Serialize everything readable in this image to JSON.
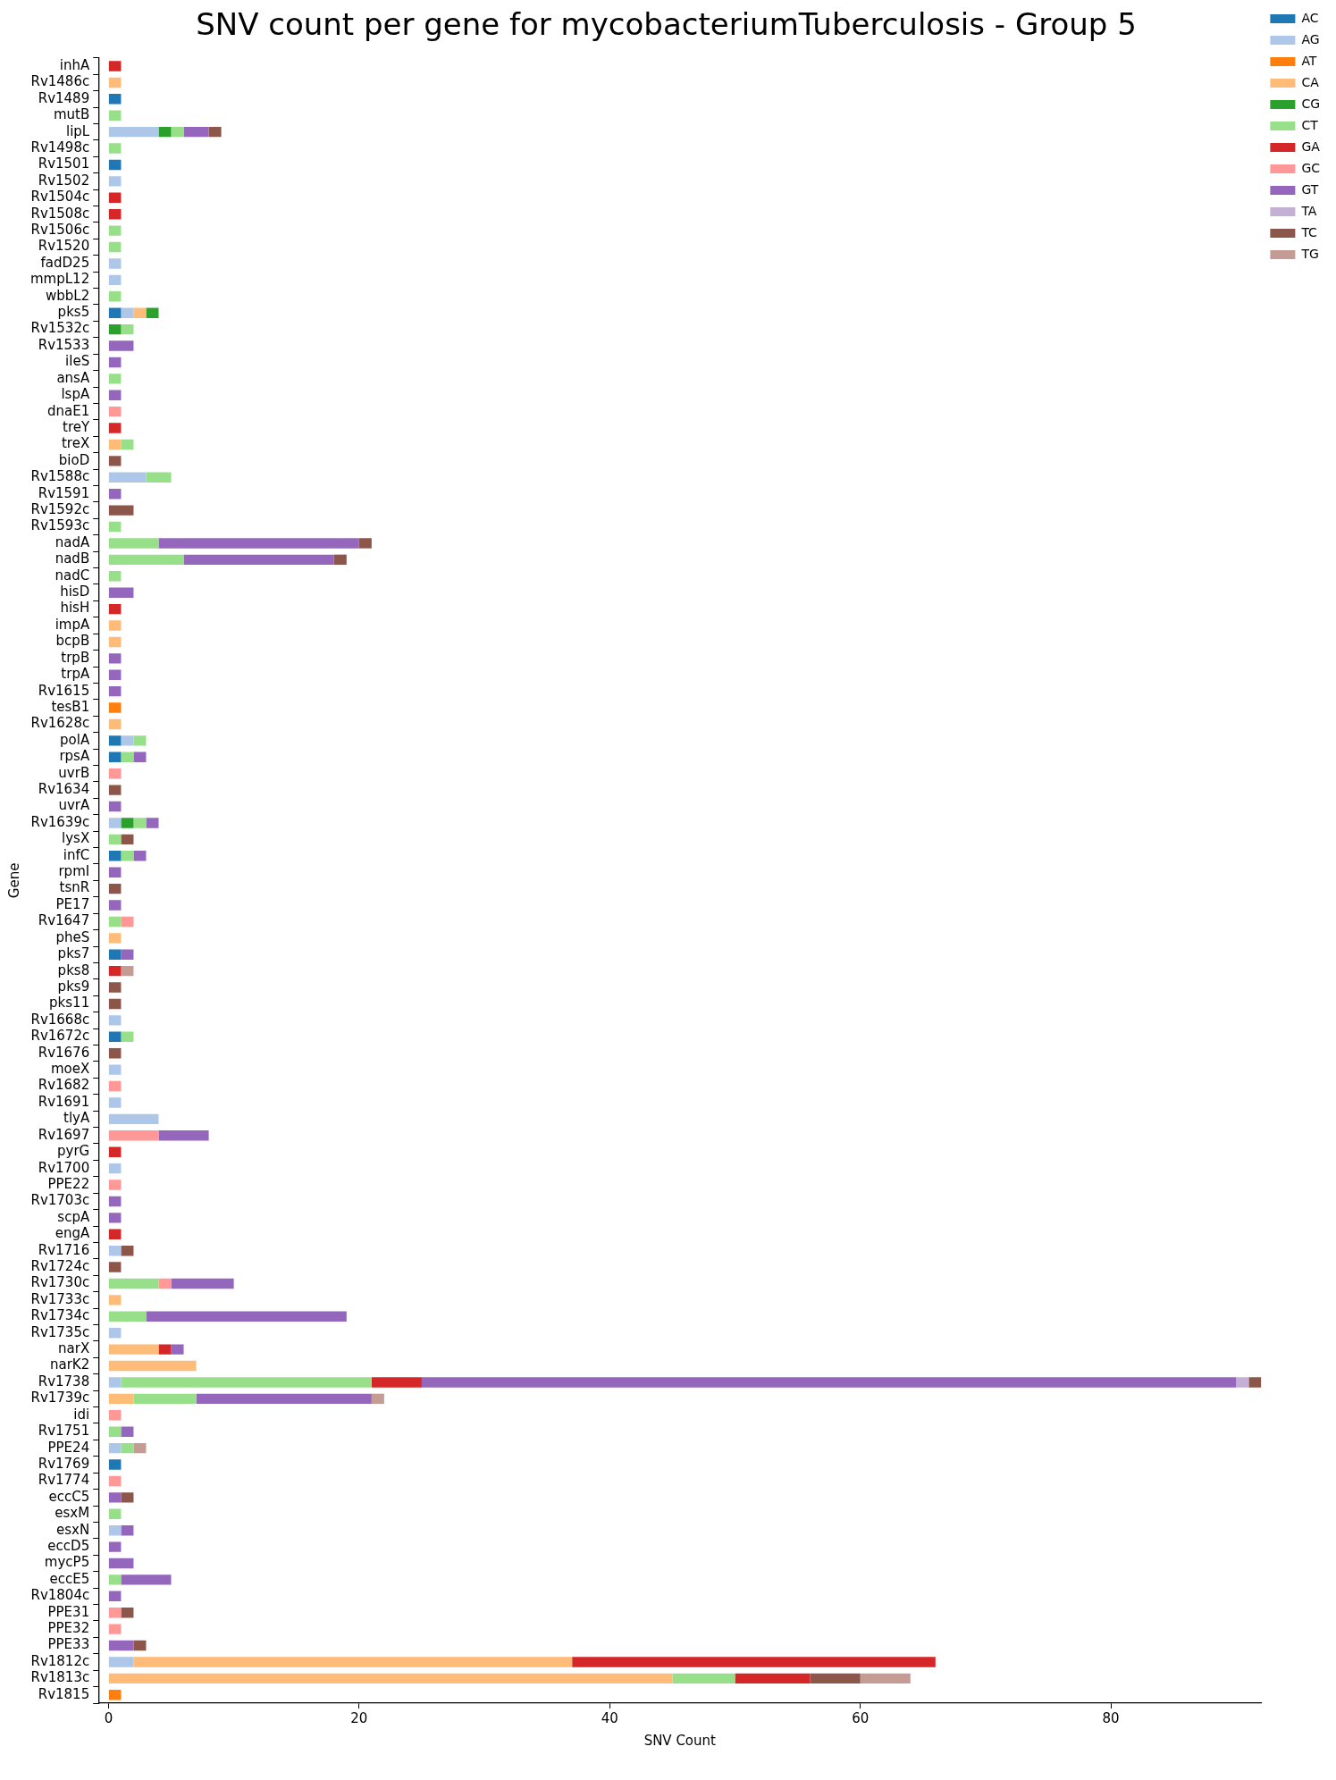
{
  "chart_data": {
    "type": "bar",
    "orientation": "horizontal",
    "stacked": true,
    "title": "SNV count per gene for mycobacteriumTuberculosis - Group 5",
    "xlabel": "SNV Count",
    "ylabel": "Gene",
    "categories": [
      "inhA",
      "Rv1486c",
      "Rv1489",
      "mutB",
      "lipL",
      "Rv1498c",
      "Rv1501",
      "Rv1502",
      "Rv1504c",
      "Rv1508c",
      "Rv1506c",
      "Rv1520",
      "fadD25",
      "mmpL12",
      "wbbL2",
      "pks5",
      "Rv1532c",
      "Rv1533",
      "ileS",
      "ansA",
      "lspA",
      "dnaE1",
      "treY",
      "treX",
      "bioD",
      "Rv1588c",
      "Rv1591",
      "Rv1592c",
      "Rv1593c",
      "nadA",
      "nadB",
      "nadC",
      "hisD",
      "hisH",
      "impA",
      "bcpB",
      "trpB",
      "trpA",
      "Rv1615",
      "tesB1",
      "Rv1628c",
      "polA",
      "rpsA",
      "uvrB",
      "Rv1634",
      "uvrA",
      "Rv1639c",
      "lysX",
      "infC",
      "rpmI",
      "tsnR",
      "PE17",
      "Rv1647",
      "pheS",
      "pks7",
      "pks8",
      "pks9",
      "pks11",
      "Rv1668c",
      "Rv1672c",
      "Rv1676",
      "moeX",
      "Rv1682",
      "Rv1691",
      "tlyA",
      "Rv1697",
      "pyrG",
      "Rv1700",
      "PPE22",
      "Rv1703c",
      "scpA",
      "engA",
      "Rv1716",
      "Rv1724c",
      "Rv1730c",
      "Rv1733c",
      "Rv1734c",
      "Rv1735c",
      "narX",
      "narK2",
      "Rv1738",
      "Rv1739c",
      "idi",
      "Rv1751",
      "PPE24",
      "Rv1769",
      "Rv1774",
      "eccC5",
      "esxM",
      "esxN",
      "eccD5",
      "mycP5",
      "eccE5",
      "Rv1804c",
      "PPE31",
      "PPE32",
      "PPE33",
      "Rv1812c",
      "Rv1813c",
      "Rv1815"
    ],
    "series": [
      {
        "name": "AC",
        "color": "#1f77b4",
        "values": [
          0,
          0,
          1,
          0,
          0,
          0,
          1,
          0,
          0,
          0,
          0,
          0,
          0,
          0,
          0,
          1,
          0,
          0,
          0,
          0,
          0,
          0,
          0,
          0,
          0,
          0,
          0,
          0,
          0,
          0,
          0,
          0,
          0,
          0,
          0,
          0,
          0,
          0,
          0,
          0,
          0,
          1,
          1,
          0,
          0,
          0,
          0,
          0,
          1,
          0,
          0,
          0,
          0,
          0,
          1,
          0,
          0,
          0,
          0,
          1,
          0,
          0,
          0,
          0,
          0,
          0,
          0,
          0,
          0,
          0,
          0,
          0,
          0,
          0,
          0,
          0,
          0,
          0,
          0,
          0,
          0,
          0,
          0,
          0,
          0,
          1,
          0,
          0,
          0,
          0,
          0,
          0,
          0,
          0,
          0,
          0,
          0,
          0,
          0,
          0
        ]
      },
      {
        "name": "AG",
        "color": "#aec7e8",
        "values": [
          0,
          0,
          0,
          0,
          4,
          0,
          0,
          1,
          0,
          0,
          0,
          0,
          1,
          1,
          0,
          1,
          0,
          0,
          0,
          0,
          0,
          0,
          0,
          0,
          0,
          3,
          0,
          0,
          0,
          0,
          0,
          0,
          0,
          0,
          0,
          0,
          0,
          0,
          0,
          0,
          0,
          1,
          0,
          0,
          0,
          0,
          1,
          0,
          0,
          0,
          0,
          0,
          0,
          0,
          0,
          0,
          0,
          0,
          1,
          0,
          0,
          1,
          0,
          1,
          4,
          0,
          0,
          1,
          0,
          0,
          0,
          0,
          1,
          0,
          0,
          0,
          0,
          1,
          0,
          0,
          1,
          0,
          0,
          0,
          1,
          0,
          0,
          0,
          0,
          1,
          0,
          0,
          0,
          0,
          0,
          0,
          0,
          2,
          0,
          0
        ]
      },
      {
        "name": "AT",
        "color": "#ff7f0e",
        "values": [
          0,
          0,
          0,
          0,
          0,
          0,
          0,
          0,
          0,
          0,
          0,
          0,
          0,
          0,
          0,
          0,
          0,
          0,
          0,
          0,
          0,
          0,
          0,
          0,
          0,
          0,
          0,
          0,
          0,
          0,
          0,
          0,
          0,
          0,
          0,
          0,
          0,
          0,
          0,
          1,
          0,
          0,
          0,
          0,
          0,
          0,
          0,
          0,
          0,
          0,
          0,
          0,
          0,
          0,
          0,
          0,
          0,
          0,
          0,
          0,
          0,
          0,
          0,
          0,
          0,
          0,
          0,
          0,
          0,
          0,
          0,
          0,
          0,
          0,
          0,
          0,
          0,
          0,
          0,
          0,
          0,
          0,
          0,
          0,
          0,
          0,
          0,
          0,
          0,
          0,
          0,
          0,
          0,
          0,
          0,
          0,
          0,
          0,
          0,
          1
        ]
      },
      {
        "name": "CA",
        "color": "#ffbb78",
        "values": [
          0,
          1,
          0,
          0,
          0,
          0,
          0,
          0,
          0,
          0,
          0,
          0,
          0,
          0,
          0,
          1,
          0,
          0,
          0,
          0,
          0,
          0,
          0,
          1,
          0,
          0,
          0,
          0,
          0,
          0,
          0,
          0,
          0,
          0,
          1,
          1,
          0,
          0,
          0,
          0,
          1,
          0,
          0,
          0,
          0,
          0,
          0,
          0,
          0,
          0,
          0,
          0,
          0,
          1,
          0,
          0,
          0,
          0,
          0,
          0,
          0,
          0,
          0,
          0,
          0,
          0,
          0,
          0,
          0,
          0,
          0,
          0,
          0,
          0,
          0,
          1,
          0,
          0,
          4,
          7,
          0,
          2,
          0,
          0,
          0,
          0,
          0,
          0,
          0,
          0,
          0,
          0,
          0,
          0,
          0,
          0,
          0,
          35,
          45,
          0
        ]
      },
      {
        "name": "CG",
        "color": "#2ca02c",
        "values": [
          0,
          0,
          0,
          0,
          1,
          0,
          0,
          0,
          0,
          0,
          0,
          0,
          0,
          0,
          0,
          1,
          1,
          0,
          0,
          0,
          0,
          0,
          0,
          0,
          0,
          0,
          0,
          0,
          0,
          0,
          0,
          0,
          0,
          0,
          0,
          0,
          0,
          0,
          0,
          0,
          0,
          0,
          0,
          0,
          0,
          0,
          1,
          0,
          0,
          0,
          0,
          0,
          0,
          0,
          0,
          0,
          0,
          0,
          0,
          0,
          0,
          0,
          0,
          0,
          0,
          0,
          0,
          0,
          0,
          0,
          0,
          0,
          0,
          0,
          0,
          0,
          0,
          0,
          0,
          0,
          0,
          0,
          0,
          0,
          0,
          0,
          0,
          0,
          0,
          0,
          0,
          0,
          0,
          0,
          0,
          0,
          0,
          0,
          0,
          0
        ]
      },
      {
        "name": "CT",
        "color": "#98df8a",
        "values": [
          0,
          0,
          0,
          1,
          1,
          1,
          0,
          0,
          0,
          0,
          1,
          1,
          0,
          0,
          1,
          0,
          1,
          0,
          0,
          1,
          0,
          0,
          0,
          1,
          0,
          2,
          0,
          0,
          1,
          4,
          6,
          1,
          0,
          0,
          0,
          0,
          0,
          0,
          0,
          0,
          0,
          1,
          1,
          0,
          0,
          0,
          1,
          1,
          1,
          0,
          0,
          0,
          1,
          0,
          0,
          0,
          0,
          0,
          0,
          1,
          0,
          0,
          0,
          0,
          0,
          0,
          0,
          0,
          0,
          0,
          0,
          0,
          0,
          0,
          4,
          0,
          3,
          0,
          0,
          0,
          20,
          5,
          0,
          1,
          1,
          0,
          0,
          0,
          1,
          0,
          0,
          0,
          1,
          0,
          0,
          0,
          0,
          0,
          5,
          0
        ]
      },
      {
        "name": "GA",
        "color": "#d62728",
        "values": [
          1,
          0,
          0,
          0,
          0,
          0,
          0,
          0,
          1,
          1,
          0,
          0,
          0,
          0,
          0,
          0,
          0,
          0,
          0,
          0,
          0,
          0,
          1,
          0,
          0,
          0,
          0,
          0,
          0,
          0,
          0,
          0,
          0,
          1,
          0,
          0,
          0,
          0,
          0,
          0,
          0,
          0,
          0,
          0,
          0,
          0,
          0,
          0,
          0,
          0,
          0,
          0,
          0,
          0,
          0,
          1,
          0,
          0,
          0,
          0,
          0,
          0,
          0,
          0,
          0,
          0,
          1,
          0,
          0,
          0,
          0,
          1,
          0,
          0,
          0,
          0,
          0,
          0,
          1,
          0,
          4,
          0,
          0,
          0,
          0,
          0,
          0,
          0,
          0,
          0,
          0,
          0,
          0,
          0,
          0,
          0,
          0,
          29,
          6,
          0
        ]
      },
      {
        "name": "GC",
        "color": "#ff9896",
        "values": [
          0,
          0,
          0,
          0,
          0,
          0,
          0,
          0,
          0,
          0,
          0,
          0,
          0,
          0,
          0,
          0,
          0,
          0,
          0,
          0,
          0,
          1,
          0,
          0,
          0,
          0,
          0,
          0,
          0,
          0,
          0,
          0,
          0,
          0,
          0,
          0,
          0,
          0,
          0,
          0,
          0,
          0,
          0,
          1,
          0,
          0,
          0,
          0,
          0,
          0,
          0,
          0,
          1,
          0,
          0,
          0,
          0,
          0,
          0,
          0,
          0,
          0,
          1,
          0,
          0,
          4,
          0,
          0,
          1,
          0,
          0,
          0,
          0,
          0,
          1,
          0,
          0,
          0,
          0,
          0,
          0,
          0,
          1,
          0,
          0,
          0,
          1,
          0,
          0,
          0,
          0,
          0,
          0,
          0,
          1,
          1,
          0,
          0,
          0,
          0
        ]
      },
      {
        "name": "GT",
        "color": "#9467bd",
        "values": [
          0,
          0,
          0,
          0,
          2,
          0,
          0,
          0,
          0,
          0,
          0,
          0,
          0,
          0,
          0,
          0,
          0,
          2,
          1,
          0,
          1,
          0,
          0,
          0,
          0,
          0,
          1,
          0,
          0,
          16,
          12,
          0,
          2,
          0,
          0,
          0,
          1,
          1,
          1,
          0,
          0,
          0,
          1,
          0,
          0,
          1,
          1,
          0,
          1,
          1,
          0,
          1,
          0,
          0,
          1,
          0,
          0,
          0,
          0,
          0,
          0,
          0,
          0,
          0,
          0,
          4,
          0,
          0,
          0,
          1,
          1,
          0,
          0,
          0,
          5,
          0,
          16,
          0,
          1,
          0,
          65,
          14,
          0,
          1,
          0,
          0,
          0,
          1,
          0,
          1,
          1,
          2,
          4,
          1,
          0,
          0,
          2,
          0,
          0,
          0
        ]
      },
      {
        "name": "TA",
        "color": "#c5b0d5",
        "values": [
          0,
          0,
          0,
          0,
          0,
          0,
          0,
          0,
          0,
          0,
          0,
          0,
          0,
          0,
          0,
          0,
          0,
          0,
          0,
          0,
          0,
          0,
          0,
          0,
          0,
          0,
          0,
          0,
          0,
          0,
          0,
          0,
          0,
          0,
          0,
          0,
          0,
          0,
          0,
          0,
          0,
          0,
          0,
          0,
          0,
          0,
          0,
          0,
          0,
          0,
          0,
          0,
          0,
          0,
          0,
          0,
          0,
          0,
          0,
          0,
          0,
          0,
          0,
          0,
          0,
          0,
          0,
          0,
          0,
          0,
          0,
          0,
          0,
          0,
          0,
          0,
          0,
          0,
          0,
          0,
          1,
          0,
          0,
          0,
          0,
          0,
          0,
          0,
          0,
          0,
          0,
          0,
          0,
          0,
          0,
          0,
          0,
          0,
          0,
          0
        ]
      },
      {
        "name": "TC",
        "color": "#8c564b",
        "values": [
          0,
          0,
          0,
          0,
          1,
          0,
          0,
          0,
          0,
          0,
          0,
          0,
          0,
          0,
          0,
          0,
          0,
          0,
          0,
          0,
          0,
          0,
          0,
          0,
          1,
          0,
          0,
          2,
          0,
          1,
          1,
          0,
          0,
          0,
          0,
          0,
          0,
          0,
          0,
          0,
          0,
          0,
          0,
          0,
          1,
          0,
          0,
          1,
          0,
          0,
          1,
          0,
          0,
          0,
          0,
          0,
          1,
          1,
          0,
          0,
          1,
          0,
          0,
          0,
          0,
          0,
          0,
          0,
          0,
          0,
          0,
          0,
          1,
          1,
          0,
          0,
          0,
          0,
          0,
          0,
          1,
          0,
          0,
          0,
          0,
          0,
          0,
          1,
          0,
          0,
          0,
          0,
          0,
          0,
          1,
          0,
          1,
          0,
          4,
          0
        ]
      },
      {
        "name": "TG",
        "color": "#c49c94",
        "values": [
          0,
          0,
          0,
          0,
          0,
          0,
          0,
          0,
          0,
          0,
          0,
          0,
          0,
          0,
          0,
          0,
          0,
          0,
          0,
          0,
          0,
          0,
          0,
          0,
          0,
          0,
          0,
          0,
          0,
          0,
          0,
          0,
          0,
          0,
          0,
          0,
          0,
          0,
          0,
          0,
          0,
          0,
          0,
          0,
          0,
          0,
          0,
          0,
          0,
          0,
          0,
          0,
          0,
          0,
          0,
          1,
          0,
          0,
          0,
          0,
          0,
          0,
          0,
          0,
          0,
          0,
          0,
          0,
          0,
          0,
          0,
          0,
          0,
          0,
          0,
          0,
          0,
          0,
          0,
          0,
          0,
          1,
          0,
          0,
          1,
          0,
          0,
          0,
          0,
          0,
          0,
          0,
          0,
          0,
          0,
          0,
          0,
          0,
          4,
          0
        ]
      }
    ],
    "xlim": [
      -0.8,
      92
    ],
    "xticks": [
      0,
      20,
      40,
      60,
      80
    ],
    "grid": false,
    "legend": "top right"
  }
}
